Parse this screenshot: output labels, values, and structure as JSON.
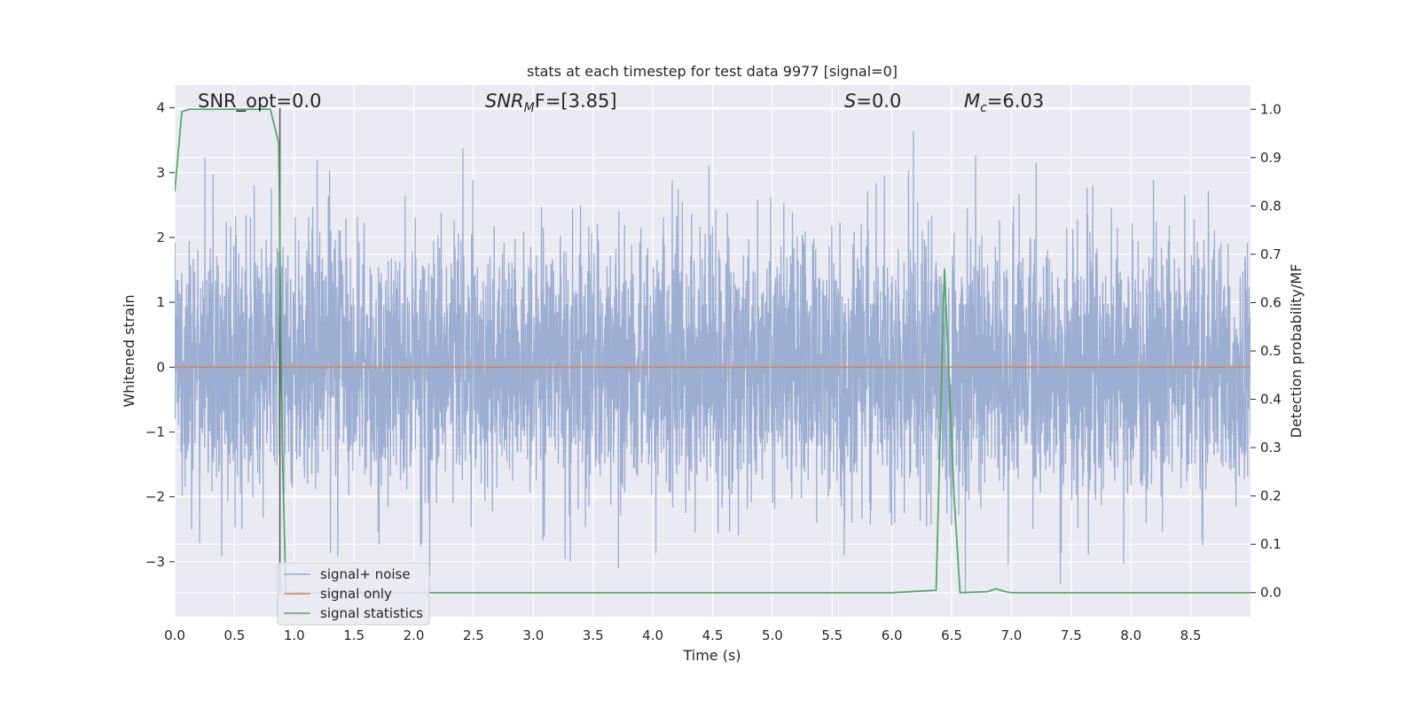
{
  "chart_data": {
    "type": "line",
    "title": "stats at each timestep for test data 9977 [signal=0]",
    "xlabel": "Time (s)",
    "ylabel_left": "Whitened strain",
    "ylabel_right": "Detection probability/MF",
    "xlim": [
      0,
      9.0
    ],
    "ylim_left": [
      -3.85,
      4.35
    ],
    "ylim_right": [
      -0.05,
      1.05
    ],
    "x_ticks": [
      "0.0",
      "0.5",
      "1.0",
      "1.5",
      "2.0",
      "2.5",
      "3.0",
      "3.5",
      "4.0",
      "4.5",
      "5.0",
      "5.5",
      "6.0",
      "6.5",
      "7.0",
      "7.5",
      "8.0",
      "8.5"
    ],
    "y_ticks_left": [
      "4",
      "3",
      "2",
      "1",
      "0",
      "−1",
      "−2",
      "−3"
    ],
    "y_ticks_right": [
      "1.0",
      "0.9",
      "0.8",
      "0.7",
      "0.6",
      "0.5",
      "0.4",
      "0.3",
      "0.2",
      "0.1",
      "0.0"
    ],
    "grid": true,
    "legend_placement": "lower-left",
    "annotations": {
      "snr_opt": "SNR_opt=0.0",
      "snr_mf_main": "SNR",
      "snr_mf_sub": "M",
      "snr_mf_rest": "F=[3.85]",
      "s_main": "S",
      "s_rest": "=0.0",
      "mc_main": "M",
      "mc_sub": "c",
      "mc_rest": "=6.03"
    },
    "vline": {
      "x": 0.88,
      "y_range": [
        -3.5,
        4.0
      ],
      "color": "#55555a"
    },
    "series": [
      {
        "name": "signal+ noise",
        "axis": "left",
        "color": "#98abd0",
        "description_values": {
          "band_low": -1.25,
          "band_high": 1.25,
          "peak_max": 4.0,
          "peak_min": -3.5
        }
      },
      {
        "name": "signal only",
        "axis": "left",
        "color": "#dd8452",
        "x": [
          0.0,
          9.0
        ],
        "y": [
          0.0,
          0.0
        ]
      },
      {
        "name": "signal statistics",
        "axis": "right",
        "color": "#55a868",
        "x": [
          0.0,
          0.06,
          0.12,
          0.2,
          0.8,
          0.87,
          0.9,
          0.93,
          0.97,
          1.0,
          3.0,
          6.0,
          6.37,
          6.44,
          6.52,
          6.57,
          6.8,
          6.87,
          6.95,
          7.0,
          9.0
        ],
        "y": [
          0.83,
          0.995,
          1.0,
          1.0,
          1.0,
          0.93,
          0.3,
          0.0,
          0.0,
          0.0,
          0.0,
          0.0,
          0.005,
          0.67,
          0.2,
          0.0,
          0.002,
          0.008,
          0.002,
          0.0,
          0.0
        ]
      }
    ]
  }
}
